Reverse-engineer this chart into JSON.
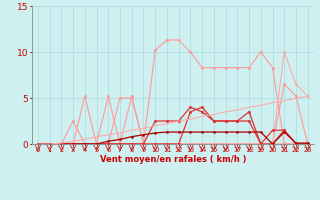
{
  "x": [
    0,
    1,
    2,
    3,
    4,
    5,
    6,
    7,
    8,
    9,
    10,
    11,
    12,
    13,
    14,
    15,
    16,
    17,
    18,
    19,
    20,
    21,
    22,
    23
  ],
  "lines": [
    {
      "y": [
        0,
        0,
        0,
        0,
        0,
        0,
        0,
        0,
        0,
        0,
        10.2,
        11.3,
        11.3,
        10.0,
        8.3,
        8.3,
        8.3,
        8.3,
        8.3,
        10.0,
        8.3,
        0,
        0,
        0
      ],
      "color": "#ff9999",
      "lw": 0.8,
      "marker": "o",
      "ms": 1.8
    },
    {
      "y": [
        0,
        0,
        0,
        0,
        5.2,
        0,
        5.2,
        0,
        5.2,
        0,
        0,
        0,
        0,
        0,
        0,
        0,
        0,
        0,
        0,
        0,
        0,
        6.5,
        5.2,
        0
      ],
      "color": "#ff9999",
      "lw": 0.8,
      "marker": "o",
      "ms": 1.8
    },
    {
      "y": [
        0,
        0,
        0,
        2.5,
        0,
        0,
        0,
        5.0,
        5.0,
        0,
        0,
        0,
        0,
        0,
        0,
        0,
        0,
        0,
        0,
        0,
        0,
        0,
        0,
        0
      ],
      "color": "#ff9999",
      "lw": 0.8,
      "marker": "o",
      "ms": 1.8
    },
    {
      "y": [
        0,
        0,
        0,
        0,
        0,
        0,
        0,
        0,
        0,
        0,
        0,
        0,
        0,
        0,
        0,
        0,
        0,
        0,
        0,
        0,
        0,
        10.0,
        6.5,
        5.2
      ],
      "color": "#ffaaaa",
      "lw": 0.8,
      "marker": "o",
      "ms": 1.8
    },
    {
      "y": [
        0,
        0,
        0,
        0,
        0,
        0,
        0,
        0,
        0,
        0,
        2.5,
        2.5,
        2.5,
        4.0,
        3.5,
        2.5,
        2.5,
        2.5,
        3.5,
        0,
        0,
        1.5,
        0,
        0
      ],
      "color": "#dd3333",
      "lw": 0.9,
      "marker": "o",
      "ms": 1.8
    },
    {
      "y": [
        0,
        0,
        0,
        0,
        0,
        0,
        0,
        0,
        0,
        0,
        0,
        0,
        0,
        3.5,
        4.0,
        2.5,
        2.5,
        2.5,
        2.5,
        0,
        1.5,
        1.5,
        0,
        0
      ],
      "color": "#dd3333",
      "lw": 0.9,
      "marker": "o",
      "ms": 1.8
    },
    {
      "y": [
        0,
        0,
        0,
        0,
        0,
        0,
        0.3,
        0.5,
        0.8,
        1.0,
        1.2,
        1.3,
        1.3,
        1.3,
        1.3,
        1.3,
        1.3,
        1.3,
        1.3,
        1.3,
        0,
        1.3,
        0.1,
        0.1
      ],
      "color": "#aa0000",
      "lw": 0.9,
      "marker": "o",
      "ms": 1.5
    },
    {
      "y": [
        0,
        0,
        0.1,
        0.3,
        0.5,
        0.8,
        1.0,
        1.2,
        1.5,
        1.7,
        2.0,
        2.2,
        2.5,
        2.7,
        3.0,
        3.2,
        3.5,
        3.7,
        4.0,
        4.2,
        4.5,
        4.7,
        5.0,
        5.2
      ],
      "color": "#ffaaaa",
      "lw": 0.8,
      "marker": null,
      "ms": 0
    }
  ],
  "xlabel": "Vent moyen/en rafales ( km/h )",
  "xlim_min": -0.5,
  "xlim_max": 23.5,
  "ylim": [
    0,
    15
  ],
  "yticks": [
    0,
    5,
    10,
    15
  ],
  "xticks": [
    0,
    1,
    2,
    3,
    4,
    5,
    6,
    7,
    8,
    9,
    10,
    11,
    12,
    13,
    14,
    15,
    16,
    17,
    18,
    19,
    20,
    21,
    22,
    23
  ],
  "bg_color": "#cef0f0",
  "grid_color": "#aadddd",
  "axis_color": "#888888",
  "tick_color": "#cc0000",
  "xlabel_color": "#cc0000"
}
